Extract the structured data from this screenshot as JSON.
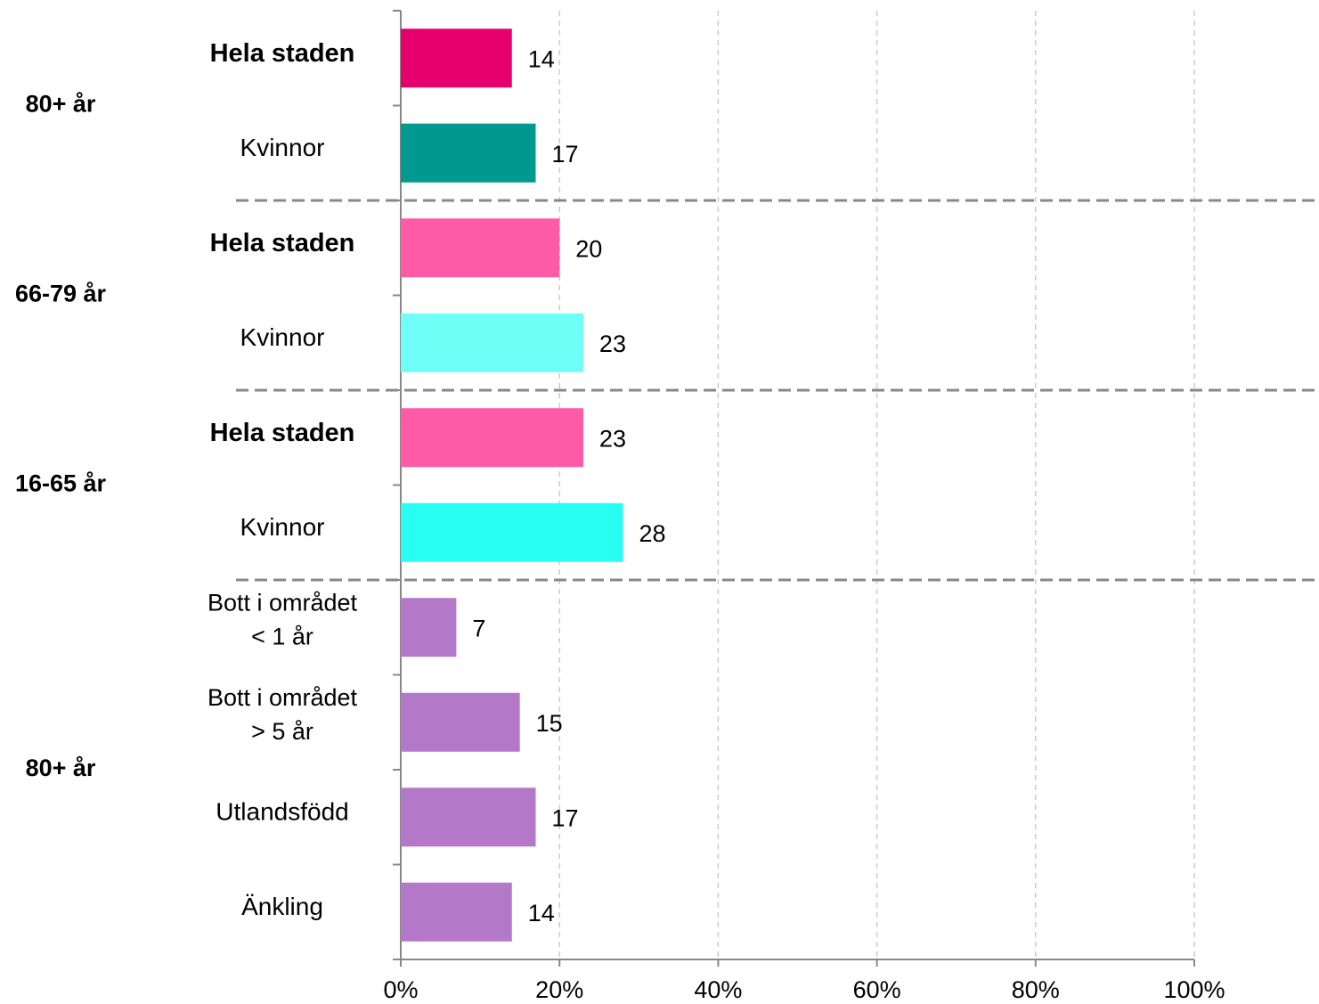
{
  "chart_data": {
    "type": "bar",
    "orientation": "horizontal",
    "groups": [
      {
        "label": "80+ år",
        "categories": [
          "Hela staden",
          "Kvinnor"
        ],
        "values": [
          14,
          17
        ],
        "colors": [
          "#e6006e",
          "#009990"
        ]
      },
      {
        "label": "66-79 år",
        "categories": [
          "Hela staden",
          "Kvinnor"
        ],
        "values": [
          20,
          23
        ],
        "colors": [
          "#ff5aa5",
          "#6ffff6"
        ]
      },
      {
        "label": "16-65 år",
        "categories": [
          "Hela staden",
          "Kvinnor"
        ],
        "values": [
          23,
          28
        ],
        "colors": [
          "#ff5aa5",
          "#28fff2"
        ]
      },
      {
        "label": "80+ år",
        "categories": [
          [
            "Bott i området",
            "< 1 år"
          ],
          [
            "Bott i området",
            "> 5 år"
          ],
          "Utlandsfödd",
          "Änkling"
        ],
        "values": [
          7,
          15,
          17,
          14
        ],
        "colors": [
          "#b478c8",
          "#b478c8",
          "#b478c8",
          "#b478c8"
        ]
      }
    ],
    "xlim": [
      0,
      100
    ],
    "xticks": [
      {
        "value": 0,
        "label": "0%"
      },
      {
        "value": 20,
        "label": "20%"
      },
      {
        "value": 40,
        "label": "40%"
      },
      {
        "value": 60,
        "label": "60%"
      },
      {
        "value": 80,
        "label": "80%"
      },
      {
        "value": 100,
        "label": "100%"
      }
    ],
    "grid": true
  }
}
